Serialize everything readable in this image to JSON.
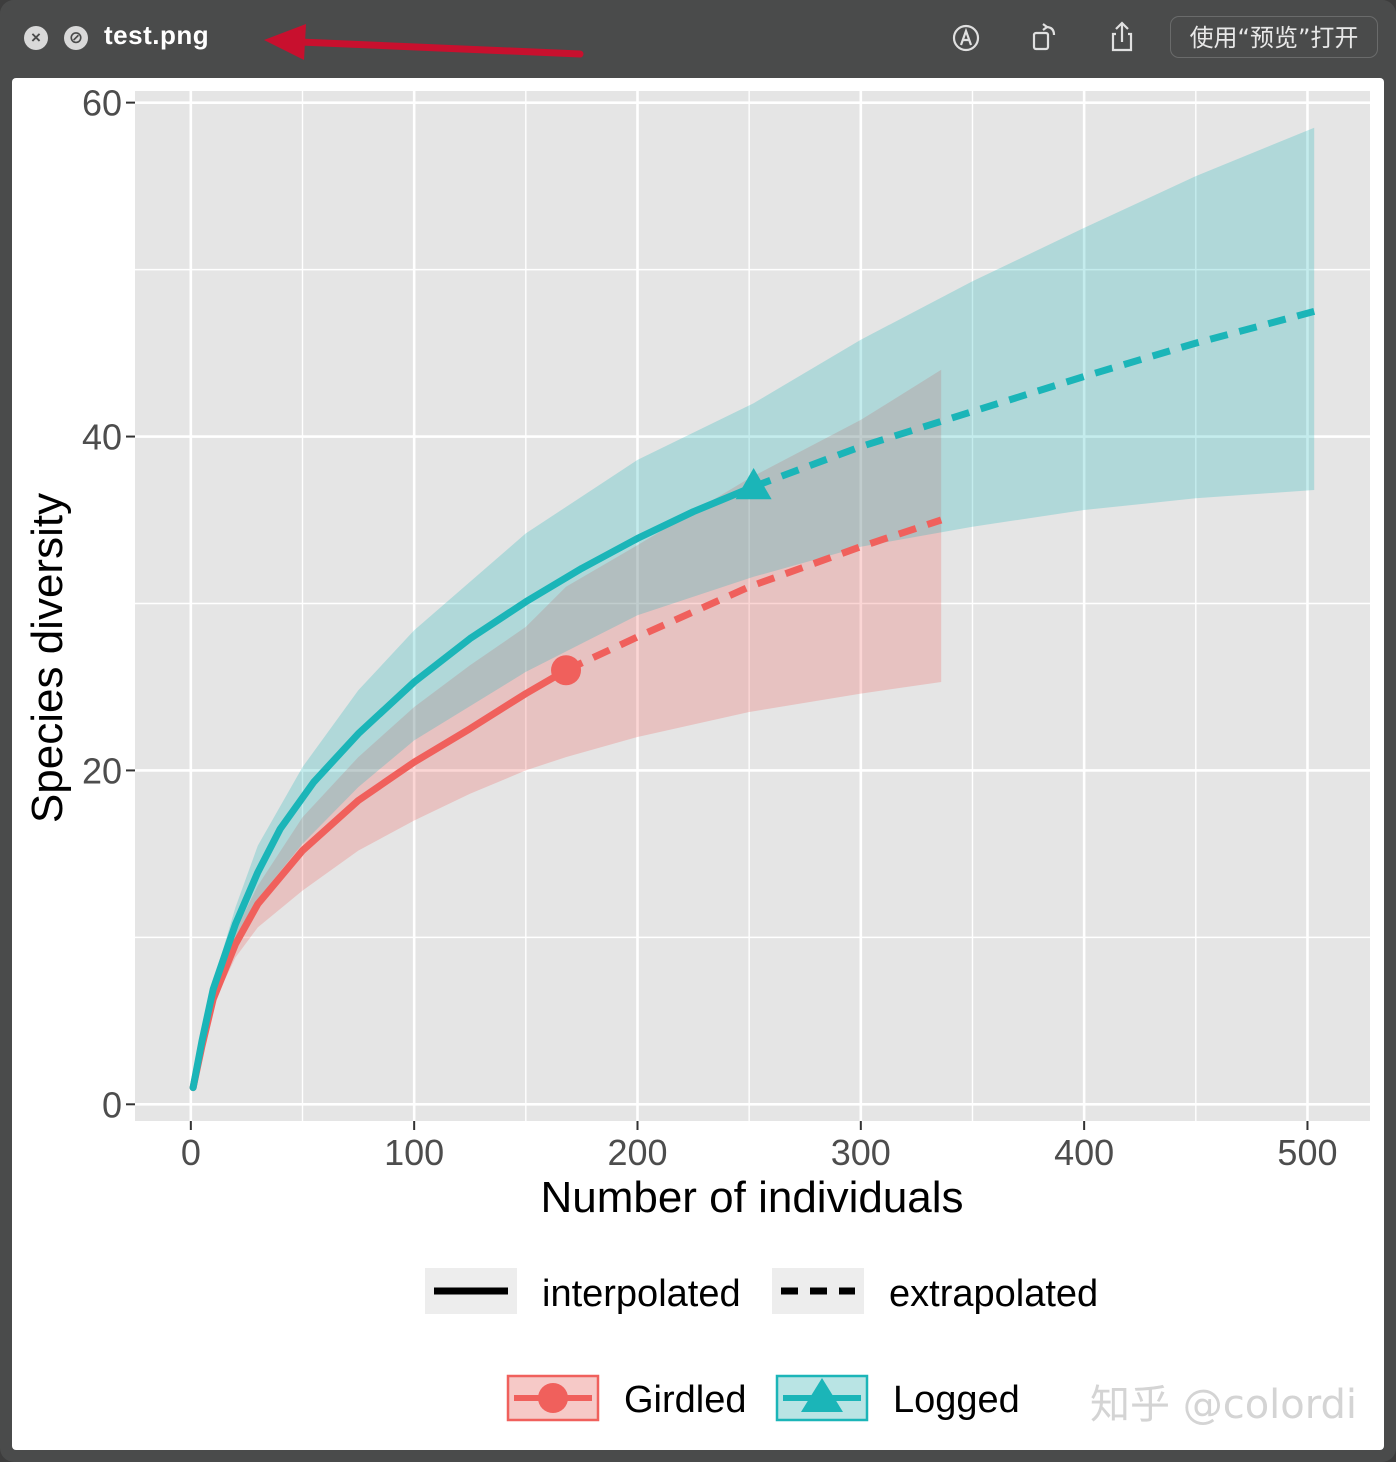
{
  "window": {
    "title": "test.png",
    "open_button_label": "使用“预览”打开",
    "icons": [
      "close-icon",
      "disabled-icon",
      "markup-icon",
      "rotate-icon",
      "share-icon"
    ]
  },
  "chart_data": {
    "type": "line",
    "title": "",
    "xlabel": "Number of individuals",
    "ylabel": "Species diversity",
    "xlim": [
      -25,
      528
    ],
    "ylim": [
      -1,
      60.7
    ],
    "x_ticks": [
      0,
      100,
      200,
      300,
      400,
      500
    ],
    "y_ticks": [
      0,
      20,
      40,
      60
    ],
    "x_tick_labels": [
      "0",
      "100",
      "200",
      "300",
      "400",
      "500"
    ],
    "y_tick_labels": [
      "0",
      "20",
      "40",
      "60"
    ],
    "grid": true,
    "legend_linetype": {
      "position": "bottom",
      "items": [
        "interpolated",
        "extrapolated"
      ]
    },
    "legend_group": {
      "position": "bottom",
      "items": [
        "Girdled",
        "Logged"
      ]
    },
    "colors": {
      "girdled": "#f0605c",
      "logged": "#1bb5b8",
      "girdled_fill": "#f0605c",
      "logged_fill": "#1bb5b8",
      "panel": "#e5e5e5",
      "grid": "#ffffff"
    },
    "series": [
      {
        "name": "Girdled",
        "marker": "circle",
        "observed": [
          168,
          26.0
        ],
        "interpolated": [
          [
            1,
            1
          ],
          [
            5,
            3.5
          ],
          [
            10,
            6.3
          ],
          [
            20,
            9.6
          ],
          [
            30,
            12.0
          ],
          [
            50,
            15.2
          ],
          [
            75,
            18.2
          ],
          [
            100,
            20.5
          ],
          [
            125,
            22.5
          ],
          [
            150,
            24.6
          ],
          [
            168,
            26.0
          ]
        ],
        "extrapolated": [
          [
            168,
            26.0
          ],
          [
            200,
            28.0
          ],
          [
            250,
            31.0
          ],
          [
            300,
            33.4
          ],
          [
            336,
            35.0
          ]
        ],
        "ci_lower": [
          [
            1,
            1
          ],
          [
            10,
            6.0
          ],
          [
            20,
            8.8
          ],
          [
            30,
            10.6
          ],
          [
            50,
            12.8
          ],
          [
            75,
            15.2
          ],
          [
            100,
            17.0
          ],
          [
            125,
            18.6
          ],
          [
            150,
            20.0
          ],
          [
            168,
            20.8
          ],
          [
            200,
            22.0
          ],
          [
            250,
            23.5
          ],
          [
            300,
            24.6
          ],
          [
            336,
            25.3
          ]
        ],
        "ci_upper": [
          [
            1,
            1
          ],
          [
            10,
            6.6
          ],
          [
            20,
            10.4
          ],
          [
            30,
            13.1
          ],
          [
            50,
            17.2
          ],
          [
            75,
            20.8
          ],
          [
            100,
            23.8
          ],
          [
            125,
            26.3
          ],
          [
            150,
            28.6
          ],
          [
            168,
            31.0
          ],
          [
            200,
            33.5
          ],
          [
            250,
            37.5
          ],
          [
            300,
            41.0
          ],
          [
            336,
            44.0
          ]
        ]
      },
      {
        "name": "Logged",
        "marker": "triangle",
        "observed": [
          252,
          37.0
        ],
        "interpolated": [
          [
            1,
            1
          ],
          [
            5,
            3.8
          ],
          [
            10,
            6.9
          ],
          [
            20,
            10.8
          ],
          [
            30,
            13.9
          ],
          [
            40,
            16.5
          ],
          [
            55,
            19.3
          ],
          [
            75,
            22.2
          ],
          [
            100,
            25.3
          ],
          [
            125,
            27.9
          ],
          [
            150,
            30.1
          ],
          [
            175,
            32.1
          ],
          [
            200,
            33.9
          ],
          [
            225,
            35.5
          ],
          [
            252,
            37.0
          ]
        ],
        "extrapolated": [
          [
            252,
            37.0
          ],
          [
            300,
            39.4
          ],
          [
            350,
            41.5
          ],
          [
            400,
            43.6
          ],
          [
            450,
            45.6
          ],
          [
            503,
            47.5
          ]
        ],
        "ci_lower": [
          [
            1,
            1
          ],
          [
            10,
            6.5
          ],
          [
            20,
            9.8
          ],
          [
            30,
            12.3
          ],
          [
            50,
            15.6
          ],
          [
            75,
            19.0
          ],
          [
            100,
            21.8
          ],
          [
            150,
            25.9
          ],
          [
            200,
            29.3
          ],
          [
            252,
            31.6
          ],
          [
            300,
            33.4
          ],
          [
            350,
            34.6
          ],
          [
            400,
            35.6
          ],
          [
            450,
            36.3
          ],
          [
            503,
            36.8
          ]
        ],
        "ci_upper": [
          [
            1,
            1
          ],
          [
            10,
            7.3
          ],
          [
            20,
            11.8
          ],
          [
            30,
            15.5
          ],
          [
            50,
            20.2
          ],
          [
            75,
            24.8
          ],
          [
            100,
            28.4
          ],
          [
            150,
            34.2
          ],
          [
            200,
            38.6
          ],
          [
            252,
            42.0
          ],
          [
            300,
            45.8
          ],
          [
            350,
            49.3
          ],
          [
            400,
            52.5
          ],
          [
            450,
            55.6
          ],
          [
            503,
            58.5
          ]
        ]
      }
    ]
  },
  "watermark": "知乎 @colordi"
}
